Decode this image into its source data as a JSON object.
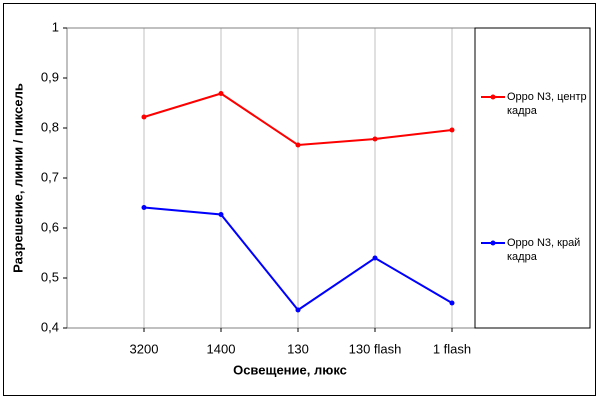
{
  "chart_data": {
    "type": "line",
    "x_label": "Освещение, люкс",
    "y_label": "Разрешение, линии / пиксель",
    "categories": [
      "3200",
      "1400",
      "130",
      "130 flash",
      "1 flash"
    ],
    "series": [
      {
        "name": "Oppo N3, центр кадра",
        "color": "#ff0000",
        "values": [
          0.822,
          0.869,
          0.766,
          0.778,
          0.796
        ]
      },
      {
        "name": "Oppo N3, край кадра",
        "color": "#0000ff",
        "values": [
          0.641,
          0.627,
          0.436,
          0.54,
          0.45
        ]
      }
    ],
    "ylim": [
      0.4,
      1
    ],
    "yticks": [
      {
        "value": 0.4,
        "label": "0,4"
      },
      {
        "value": 0.5,
        "label": "0,5"
      },
      {
        "value": 0.6,
        "label": "0,6"
      },
      {
        "value": 0.7,
        "label": "0,7"
      },
      {
        "value": 0.8,
        "label": "0,8"
      },
      {
        "value": 0.9,
        "label": "0,9"
      },
      {
        "value": 1,
        "label": "1"
      }
    ],
    "grid": true,
    "legend": "right"
  }
}
